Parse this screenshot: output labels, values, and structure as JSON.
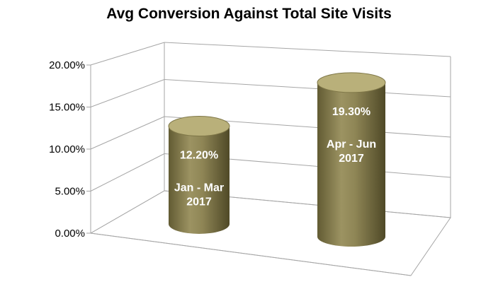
{
  "chart_data": {
    "type": "bar",
    "title": "Avg Conversion Against Total Site Visits",
    "xlabel": "",
    "ylabel": "",
    "ylim": [
      0,
      20
    ],
    "y_tick_labels": [
      "0.00%",
      "5.00%",
      "10.00%",
      "15.00%",
      "20.00%"
    ],
    "y_ticks": [
      0,
      5,
      10,
      15,
      20
    ],
    "categories": [
      [
        "Jan - Mar",
        "2017"
      ],
      [
        "Apr - Jun",
        "2017"
      ]
    ],
    "values": [
      12.2,
      19.3
    ],
    "data_labels": [
      "12.20%",
      "19.30%"
    ],
    "grid": true,
    "legend": "none",
    "bar_shape": "cylinder",
    "bar_color": "#8d8451",
    "bar_top_color": "#b9b07a"
  }
}
